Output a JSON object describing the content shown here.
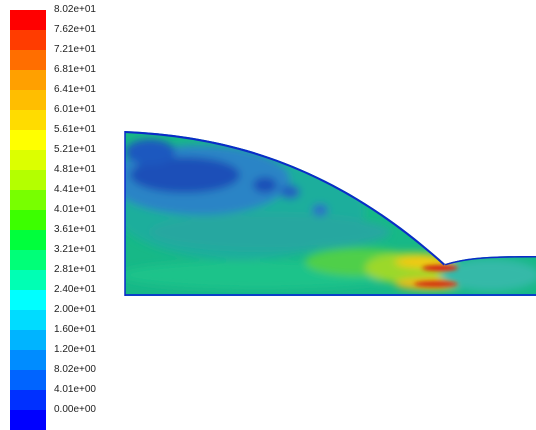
{
  "legend": {
    "labels": [
      "8.02e+01",
      "7.62e+01",
      "7.21e+01",
      "6.81e+01",
      "6.41e+01",
      "6.01e+01",
      "5.61e+01",
      "5.21e+01",
      "4.81e+01",
      "4.41e+01",
      "4.01e+01",
      "3.61e+01",
      "3.21e+01",
      "2.81e+01",
      "2.40e+01",
      "2.00e+01",
      "1.60e+01",
      "1.20e+01",
      "8.02e+00",
      "4.01e+00",
      "0.00e+00"
    ],
    "colors": [
      "#ff0000",
      "#ff3c00",
      "#ff6e00",
      "#ffa000",
      "#ffbe00",
      "#ffdc00",
      "#ffff00",
      "#dcff00",
      "#b4ff00",
      "#78ff00",
      "#3cff00",
      "#00ff3c",
      "#00ff78",
      "#00ffb4",
      "#00ffff",
      "#00dcff",
      "#00b4ff",
      "#008cff",
      "#0064ff",
      "#0030ff",
      "#0000ff"
    ]
  }
}
